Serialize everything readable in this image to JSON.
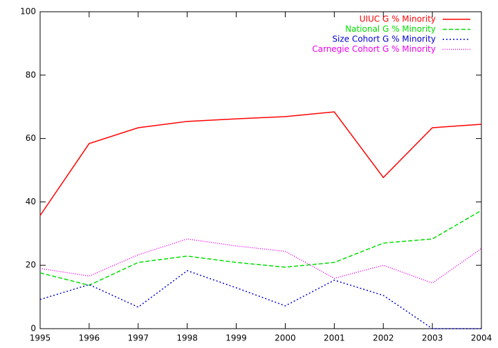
{
  "chart_data": {
    "type": "line",
    "x": [
      1995,
      1996,
      1997,
      1998,
      1999,
      2000,
      2001,
      2002,
      2003,
      2004
    ],
    "xlim": [
      1995,
      2004
    ],
    "xticks": [
      1995,
      1996,
      1997,
      1998,
      1999,
      2000,
      2001,
      2002,
      2003,
      2004
    ],
    "ylim": [
      0,
      100
    ],
    "yticks": [
      0,
      20,
      40,
      60,
      80,
      100
    ],
    "legend": "top-right",
    "series": [
      {
        "name": "UIUC G % Minority",
        "color": "#ff0000",
        "dash": "solid",
        "values": [
          35.7,
          58.4,
          63.4,
          65.4,
          66.2,
          66.9,
          68.4,
          47.7,
          63.4,
          64.5
        ]
      },
      {
        "name": "National G % Minority",
        "color": "#00dd00",
        "dash": "dashed",
        "values": [
          17.6,
          13.7,
          20.9,
          22.9,
          20.9,
          19.4,
          20.9,
          27.0,
          28.3,
          37.3
        ]
      },
      {
        "name": "Size Cohort G % Minority",
        "color": "#0000cc",
        "dash": "dotted",
        "values": [
          9.2,
          13.9,
          6.8,
          18.3,
          12.9,
          7.2,
          15.3,
          10.5,
          0,
          0
        ]
      },
      {
        "name": "Carnegie Cohort G % Minority",
        "color": "#ee00ee",
        "dash": "fine-dotted",
        "values": [
          19.0,
          16.6,
          23.3,
          28.3,
          26.1,
          24.4,
          15.9,
          20.0,
          14.4,
          25.3
        ]
      }
    ]
  }
}
